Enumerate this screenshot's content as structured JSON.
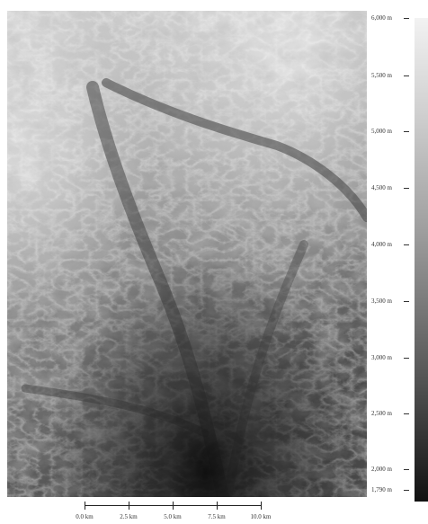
{
  "map": {
    "colormap": [
      "#f2f2f2",
      "#cfcfcf",
      "#9c9c9c",
      "#5b5b5b",
      "#111111"
    ]
  },
  "legend": {
    "labels": [
      "6,000 m",
      "5,500 m",
      "5,000 m",
      "4,500 m",
      "4,000 m",
      "3,500 m",
      "3,000 m",
      "2,500 m",
      "2,000 m",
      "1,790 m"
    ]
  },
  "scalebar": {
    "labels": [
      "0.0 km",
      "2.5 km",
      "5.0 km",
      "7.5 km",
      "10.0 km"
    ]
  }
}
